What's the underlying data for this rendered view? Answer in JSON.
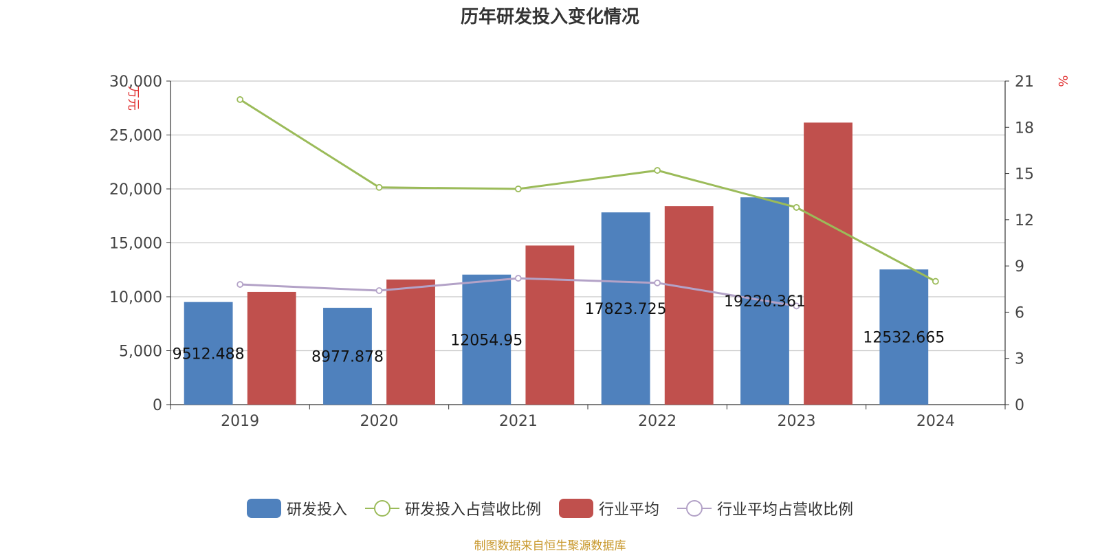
{
  "title": "历年研发投入变化情况",
  "source_note": "制图数据来自恒生聚源数据库",
  "chart_data": {
    "type": "bar",
    "title": "历年研发投入变化情况",
    "categories": [
      "2019",
      "2020",
      "2021",
      "2022",
      "2023",
      "2024"
    ],
    "y_left": {
      "label": "万元",
      "ylim": [
        0,
        30000
      ],
      "ticks": [
        0,
        5000,
        10000,
        15000,
        20000,
        25000,
        30000
      ],
      "tick_labels": [
        "0",
        "5,000",
        "10,000",
        "15,000",
        "20,000",
        "25,000",
        "30,000"
      ]
    },
    "y_right": {
      "label": "%",
      "ylim": [
        0,
        21
      ],
      "ticks": [
        0,
        3,
        6,
        9,
        12,
        15,
        18,
        21
      ],
      "tick_labels": [
        "0",
        "3",
        "6",
        "9",
        "12",
        "15",
        "18",
        "21"
      ]
    },
    "grid": true,
    "legend_position": "bottom-center",
    "series": [
      {
        "name": "研发投入",
        "type": "bar",
        "axis": "left",
        "color": "#4f81bd",
        "values": [
          9512.488,
          8977.878,
          12054.95,
          17823.725,
          19220.361,
          12532.665
        ],
        "data_labels": [
          "9512.488",
          "8977.878",
          "12054.95",
          "17823.725",
          "19220.361",
          "12532.665"
        ]
      },
      {
        "name": "研发投入占营收比例",
        "type": "line",
        "axis": "right",
        "color": "#9bbb59",
        "values": [
          19.8,
          14.1,
          14.0,
          15.2,
          12.8,
          8.0
        ]
      },
      {
        "name": "行业平均",
        "type": "bar",
        "axis": "left",
        "color": "#c0504d",
        "values": [
          10450,
          11600,
          14750,
          18400,
          26150,
          null
        ]
      },
      {
        "name": "行业平均占营收比例",
        "type": "line",
        "axis": "right",
        "color": "#b3a2c7",
        "values": [
          7.8,
          7.4,
          8.2,
          7.9,
          6.4,
          null
        ]
      }
    ]
  }
}
